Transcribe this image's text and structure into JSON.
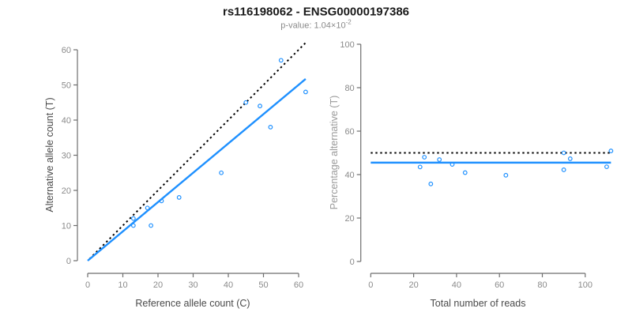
{
  "header": {
    "title": "rs116198062 - ENSG00000197386",
    "pvalue_text": "p-value: 1.04×10",
    "pvalue_exponent": "-2"
  },
  "chart_data": [
    {
      "type": "scatter",
      "xlabel": "Reference allele count (C)",
      "ylabel": "Alternative allele count (T)",
      "xlim": [
        0,
        62
      ],
      "ylim": [
        0,
        62
      ],
      "xticks": [
        0,
        10,
        20,
        30,
        40,
        50,
        60
      ],
      "yticks": [
        0,
        10,
        20,
        30,
        40,
        50,
        60
      ],
      "grid": false,
      "legend": "none",
      "points": [
        [
          13,
          10
        ],
        [
          13,
          12
        ],
        [
          17,
          15
        ],
        [
          18,
          10
        ],
        [
          21,
          17
        ],
        [
          26,
          18
        ],
        [
          38,
          25
        ],
        [
          45,
          45
        ],
        [
          49,
          44
        ],
        [
          52,
          38
        ],
        [
          55,
          57
        ],
        [
          62,
          48
        ]
      ],
      "lines": [
        {
          "name": "identity-line",
          "style": "dotted",
          "color": "#000000",
          "x1": 0.5,
          "y1": 0.5,
          "x2": 62,
          "y2": 62
        },
        {
          "name": "regression-line",
          "style": "solid",
          "color": "#1E90FF",
          "x1": 0,
          "y1": 0,
          "x2": 62,
          "y2": 51.7
        }
      ]
    },
    {
      "type": "scatter",
      "xlabel": "Total number of reads",
      "ylabel": "Percentage alternative (T)",
      "xlim": [
        0,
        112
      ],
      "ylim": [
        0,
        100
      ],
      "xticks": [
        0,
        20,
        40,
        60,
        80,
        100
      ],
      "yticks": [
        0,
        20,
        40,
        60,
        80,
        100
      ],
      "grid": false,
      "legend": "none",
      "points": [
        [
          23,
          43.5
        ],
        [
          25,
          48
        ],
        [
          28,
          35.7
        ],
        [
          32,
          46.9
        ],
        [
          38,
          44.7
        ],
        [
          44,
          40.9
        ],
        [
          63,
          39.7
        ],
        [
          90,
          42.2
        ],
        [
          90,
          50
        ],
        [
          93,
          47.3
        ],
        [
          110,
          43.6
        ],
        [
          112,
          50.9
        ]
      ],
      "lines": [
        {
          "name": "expected-50pct-line",
          "style": "dotted",
          "color": "#000000",
          "x1": 0,
          "y1": 50,
          "x2": 112,
          "y2": 50
        },
        {
          "name": "mean-line",
          "style": "solid",
          "color": "#1E90FF",
          "x1": 0,
          "y1": 45.5,
          "x2": 112,
          "y2": 45.5
        }
      ]
    }
  ],
  "colors": {
    "accent_blue": "#1E90FF",
    "axis": "#6e6e6e",
    "tick_label": "#8a8a8a",
    "axis_label": "#4a4a4a",
    "axis_label_light": "#9a9a9a",
    "title": "#1a1a1a",
    "subtitle": "#8a8a8a"
  }
}
